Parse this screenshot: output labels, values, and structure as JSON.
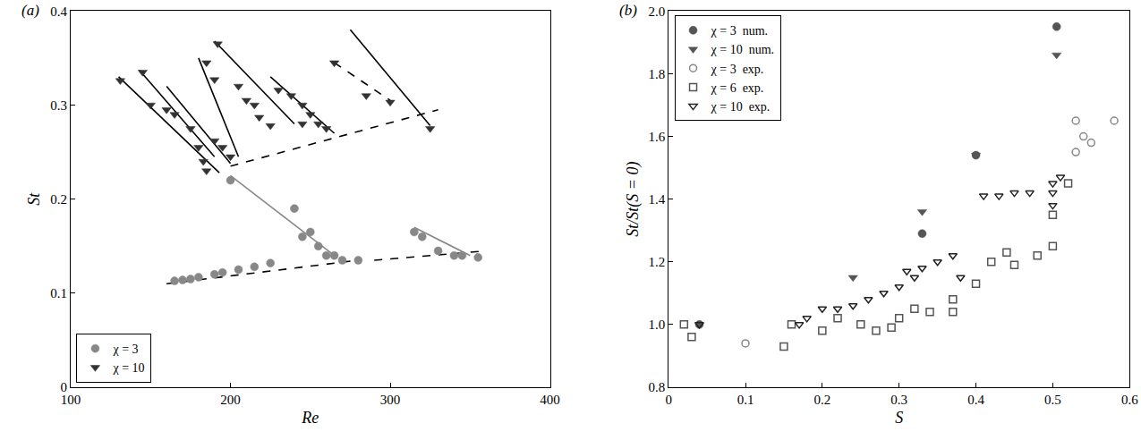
{
  "chart_data": [
    {
      "type": "scatter",
      "annotations": [
        "(a)"
      ],
      "x_label": "Re",
      "y_label": "St",
      "xlim": [
        100,
        400
      ],
      "xticks": [
        100,
        200,
        300,
        400
      ],
      "ylim": [
        0,
        0.4
      ],
      "yticks": [
        0,
        0.1,
        0.2,
        0.3,
        0.4
      ],
      "grid": false,
      "legend": "lower left",
      "series": [
        {
          "type": "line",
          "line_style": "solid",
          "color": "#000000",
          "x": [
            130,
            193,
            null,
            143,
            190,
            null,
            160,
            200,
            null,
            180,
            205,
            null,
            190,
            240,
            null,
            225,
            265,
            null,
            275,
            325
          ],
          "values": [
            0.33,
            0.228,
            null,
            0.337,
            0.245,
            null,
            0.32,
            0.238,
            null,
            0.35,
            0.245,
            null,
            0.368,
            0.28,
            null,
            0.33,
            0.27,
            null,
            0.38,
            0.278
          ]
        },
        {
          "type": "line",
          "line_style": "dashed",
          "color": "#000000",
          "x": [
            200,
            330,
            null,
            265,
            300
          ],
          "values": [
            0.235,
            0.295,
            null,
            0.345,
            0.305
          ]
        },
        {
          "type": "line",
          "line_style": "solid",
          "color": "#888888",
          "x": [
            200,
            265,
            null,
            315,
            350
          ],
          "values": [
            0.225,
            0.14,
            null,
            0.17,
            0.14
          ]
        },
        {
          "type": "line",
          "line_style": "dashed",
          "color": "#000000",
          "x": [
            160,
            280,
            null,
            290,
            360
          ],
          "values": [
            0.11,
            0.135,
            null,
            0.135,
            0.145
          ]
        },
        {
          "name": "χ = 3",
          "type": "scatter",
          "marker": "circle",
          "color": "#888888",
          "x": [
            165,
            170,
            175,
            180,
            190,
            195,
            205,
            215,
            225,
            240,
            245,
            250,
            255,
            260,
            265,
            270,
            280,
            315,
            320,
            330,
            340,
            345,
            355,
            200
          ],
          "values": [
            0.113,
            0.114,
            0.115,
            0.117,
            0.12,
            0.122,
            0.125,
            0.128,
            0.132,
            0.19,
            0.16,
            0.165,
            0.15,
            0.14,
            0.14,
            0.135,
            0.135,
            0.165,
            0.16,
            0.145,
            0.14,
            0.14,
            0.138,
            0.22
          ]
        },
        {
          "name": "χ = 10",
          "type": "scatter",
          "marker": "triangle-down",
          "color": "#333333",
          "x": [
            131,
            145,
            150,
            160,
            165,
            175,
            180,
            183,
            185,
            190,
            192,
            185,
            190,
            195,
            200,
            205,
            210,
            215,
            218,
            225,
            230,
            238,
            245,
            250,
            255,
            265,
            285,
            300,
            325,
            245,
            260
          ],
          "values": [
            0.326,
            0.335,
            0.3,
            0.295,
            0.29,
            0.275,
            0.255,
            0.24,
            0.23,
            0.262,
            0.365,
            0.345,
            0.327,
            0.255,
            0.245,
            0.32,
            0.305,
            0.3,
            0.287,
            0.278,
            0.316,
            0.31,
            0.3,
            0.29,
            0.28,
            0.345,
            0.31,
            0.303,
            0.275,
            0.28,
            0.275
          ]
        }
      ]
    },
    {
      "type": "scatter",
      "annotations": [
        "(b)"
      ],
      "x_label": "S",
      "y_label": "St/St(S = 0)",
      "xlim": [
        0,
        0.6
      ],
      "xticks": [
        0,
        0.1,
        0.2,
        0.3,
        0.4,
        0.5,
        0.6
      ],
      "ylim": [
        0.8,
        2.0
      ],
      "yticks": [
        0.8,
        {
          "value": 1,
          "label": "1.0"
        },
        1.2,
        1.4,
        1.6,
        1.8,
        {
          "value": 2,
          "label": "2.0"
        }
      ],
      "grid": false,
      "legend": "upper left",
      "series": [
        {
          "name": "χ = 3  num.",
          "type": "scatter",
          "marker": "circle",
          "color": "#555555",
          "x": [
            0.04,
            0.33,
            0.4,
            0.505
          ],
          "values": [
            1.0,
            1.29,
            1.54,
            1.95
          ]
        },
        {
          "name": "χ = 10  num.",
          "type": "scatter",
          "marker": "triangle-down",
          "color": "#555555",
          "x": [
            0.04,
            0.24,
            0.33,
            0.4,
            0.505
          ],
          "values": [
            1.0,
            1.15,
            1.36,
            1.54,
            1.86
          ]
        },
        {
          "name": "χ = 3  exp.",
          "type": "scatter",
          "marker": "circle-open",
          "color": "#888888",
          "x": [
            0.1,
            0.53,
            0.54,
            0.55,
            0.58,
            0.53
          ],
          "values": [
            0.94,
            1.65,
            1.6,
            1.58,
            1.65,
            1.55
          ]
        },
        {
          "name": "χ = 6  exp.",
          "type": "scatter",
          "marker": "square-open",
          "color": "#555555",
          "x": [
            0.02,
            0.03,
            0.15,
            0.16,
            0.2,
            0.22,
            0.25,
            0.27,
            0.29,
            0.3,
            0.32,
            0.34,
            0.37,
            0.4,
            0.42,
            0.44,
            0.45,
            0.48,
            0.5,
            0.5,
            0.52,
            0.37
          ],
          "values": [
            1.0,
            0.96,
            0.93,
            1.0,
            0.98,
            1.02,
            1.0,
            0.98,
            0.99,
            1.02,
            1.05,
            1.04,
            1.08,
            1.13,
            1.2,
            1.23,
            1.19,
            1.22,
            1.25,
            1.35,
            1.45,
            1.04
          ]
        },
        {
          "name": "χ = 10  exp.",
          "type": "scatter",
          "marker": "triangle-down-open",
          "color": "#222222",
          "x": [
            0.04,
            0.17,
            0.18,
            0.2,
            0.22,
            0.24,
            0.26,
            0.28,
            0.3,
            0.31,
            0.32,
            0.33,
            0.35,
            0.37,
            0.38,
            0.41,
            0.43,
            0.45,
            0.47,
            0.5,
            0.5,
            0.51,
            0.5
          ],
          "values": [
            1.0,
            1.0,
            1.02,
            1.05,
            1.05,
            1.06,
            1.08,
            1.1,
            1.12,
            1.17,
            1.15,
            1.18,
            1.2,
            1.22,
            1.15,
            1.41,
            1.41,
            1.42,
            1.42,
            1.42,
            1.45,
            1.47,
            1.38
          ]
        }
      ]
    }
  ]
}
